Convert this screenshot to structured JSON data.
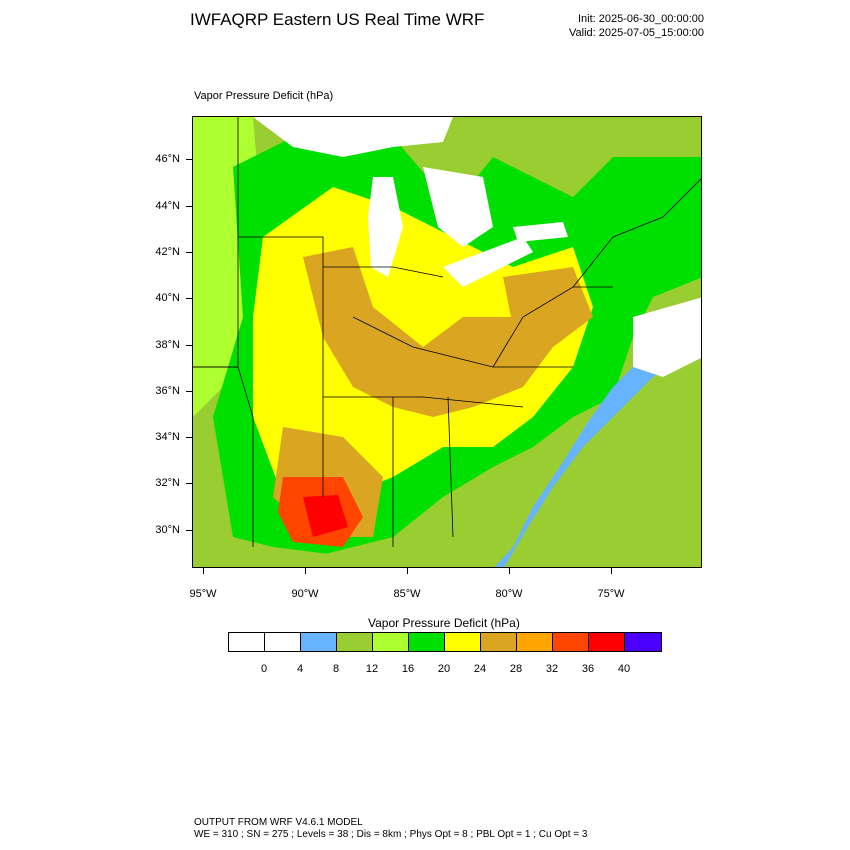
{
  "header": {
    "title": "IWFAQRP Eastern US Real Time WRF",
    "init": "Init: 2025-06-30_00:00:00",
    "valid": "Valid: 2025-07-05_15:00:00"
  },
  "plot": {
    "field_label": "Vapor Pressure Deficit   (hPa)",
    "lat_labels": [
      "46°N",
      "44°N",
      "42°N",
      "40°N",
      "38°N",
      "36°N",
      "34°N",
      "32°N",
      "30°N"
    ],
    "lon_labels": [
      "95°W",
      "90°W",
      "85°W",
      "80°W",
      "75°W"
    ]
  },
  "colorbar": {
    "title": "Vapor Pressure Deficit  (hPa)",
    "colors": [
      "#FFFFFF",
      "#FFFFFF",
      "#66B3FF",
      "#9ACD32",
      "#ADFF2F",
      "#00E000",
      "#FFFF00",
      "#DAA520",
      "#FFA500",
      "#FF4500",
      "#FF0000",
      "#4B00FF"
    ],
    "labels": [
      "0",
      "4",
      "8",
      "12",
      "16",
      "20",
      "24",
      "28",
      "32",
      "36",
      "40"
    ]
  },
  "palette": {
    "land_base": "#9ACD32",
    "light_green": "#ADFF2F",
    "green": "#00E000",
    "yellow": "#FFFF00",
    "tan": "#DAA520",
    "orange": "#FFA500",
    "red_orange": "#FF4500",
    "red": "#FF0000",
    "water": "#FFFFFF",
    "sky": "#66B3FF"
  },
  "footer": {
    "line1": "OUTPUT FROM WRF V4.6.1 MODEL",
    "line2": "WE = 310 ; SN = 275 ; Levels = 38 ; Dis = 8km ; Phys Opt = 8 ; PBL Opt = 1 ; Cu Opt = 3"
  }
}
